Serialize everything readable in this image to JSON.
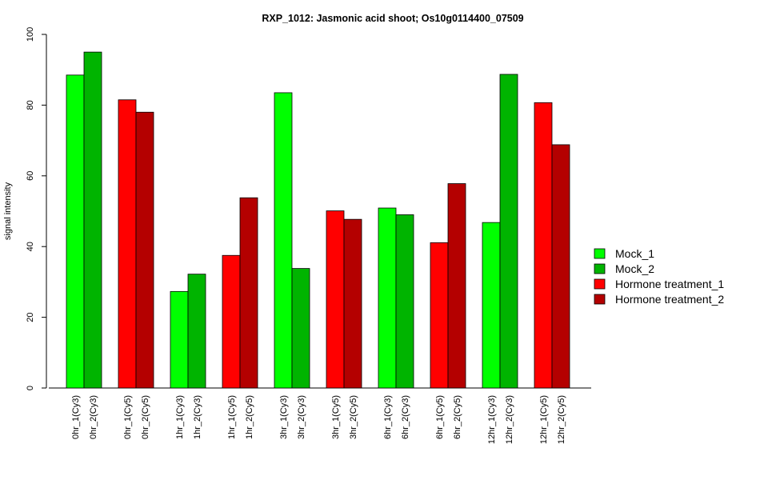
{
  "chart_data": {
    "type": "bar",
    "title": "RXP_1012: Jasmonic acid shoot; Os10g0114400_07509",
    "xlabel": "",
    "ylabel": "signal intensity",
    "ylim": [
      0,
      100
    ],
    "yticks": [
      0,
      20,
      40,
      60,
      80,
      100
    ],
    "grid": false,
    "legend_position": "right",
    "legend": [
      {
        "name": "Mock_1",
        "color": "#00ff00"
      },
      {
        "name": "Mock_2",
        "color": "#00b400"
      },
      {
        "name": "Hormone treatment_1",
        "color": "#ff0000"
      },
      {
        "name": "Hormone treatment_2",
        "color": "#b40000"
      }
    ],
    "bars": [
      {
        "label": "0hr_1(Cy3)",
        "value": 88.5,
        "color": "#00ff00"
      },
      {
        "label": "0hr_2(Cy3)",
        "value": 95.0,
        "color": "#00b400"
      },
      {
        "label": "0hr_1(Cy5)",
        "value": 81.5,
        "color": "#ff0000"
      },
      {
        "label": "0hr_2(Cy5)",
        "value": 78.0,
        "color": "#b40000"
      },
      {
        "label": "1hr_1(Cy3)",
        "value": 27.3,
        "color": "#00ff00"
      },
      {
        "label": "1hr_2(Cy3)",
        "value": 32.2,
        "color": "#00b400"
      },
      {
        "label": "1hr_1(Cy5)",
        "value": 37.5,
        "color": "#ff0000"
      },
      {
        "label": "1hr_2(Cy5)",
        "value": 53.8,
        "color": "#b40000"
      },
      {
        "label": "3hr_1(Cy3)",
        "value": 83.5,
        "color": "#00ff00"
      },
      {
        "label": "3hr_2(Cy3)",
        "value": 33.8,
        "color": "#00b400"
      },
      {
        "label": "3hr_1(Cy5)",
        "value": 50.1,
        "color": "#ff0000"
      },
      {
        "label": "3hr_2(Cy5)",
        "value": 47.7,
        "color": "#b40000"
      },
      {
        "label": "6hr_1(Cy3)",
        "value": 50.9,
        "color": "#00ff00"
      },
      {
        "label": "6hr_2(Cy3)",
        "value": 49.0,
        "color": "#00b400"
      },
      {
        "label": "6hr_1(Cy5)",
        "value": 41.1,
        "color": "#ff0000"
      },
      {
        "label": "6hr_2(Cy5)",
        "value": 57.8,
        "color": "#b40000"
      },
      {
        "label": "12hr_1(Cy3)",
        "value": 46.8,
        "color": "#00ff00"
      },
      {
        "label": "12hr_2(Cy3)",
        "value": 88.7,
        "color": "#00b400"
      },
      {
        "label": "12hr_1(Cy5)",
        "value": 80.7,
        "color": "#ff0000"
      },
      {
        "label": "12hr_2(Cy5)",
        "value": 68.8,
        "color": "#b40000"
      }
    ]
  }
}
